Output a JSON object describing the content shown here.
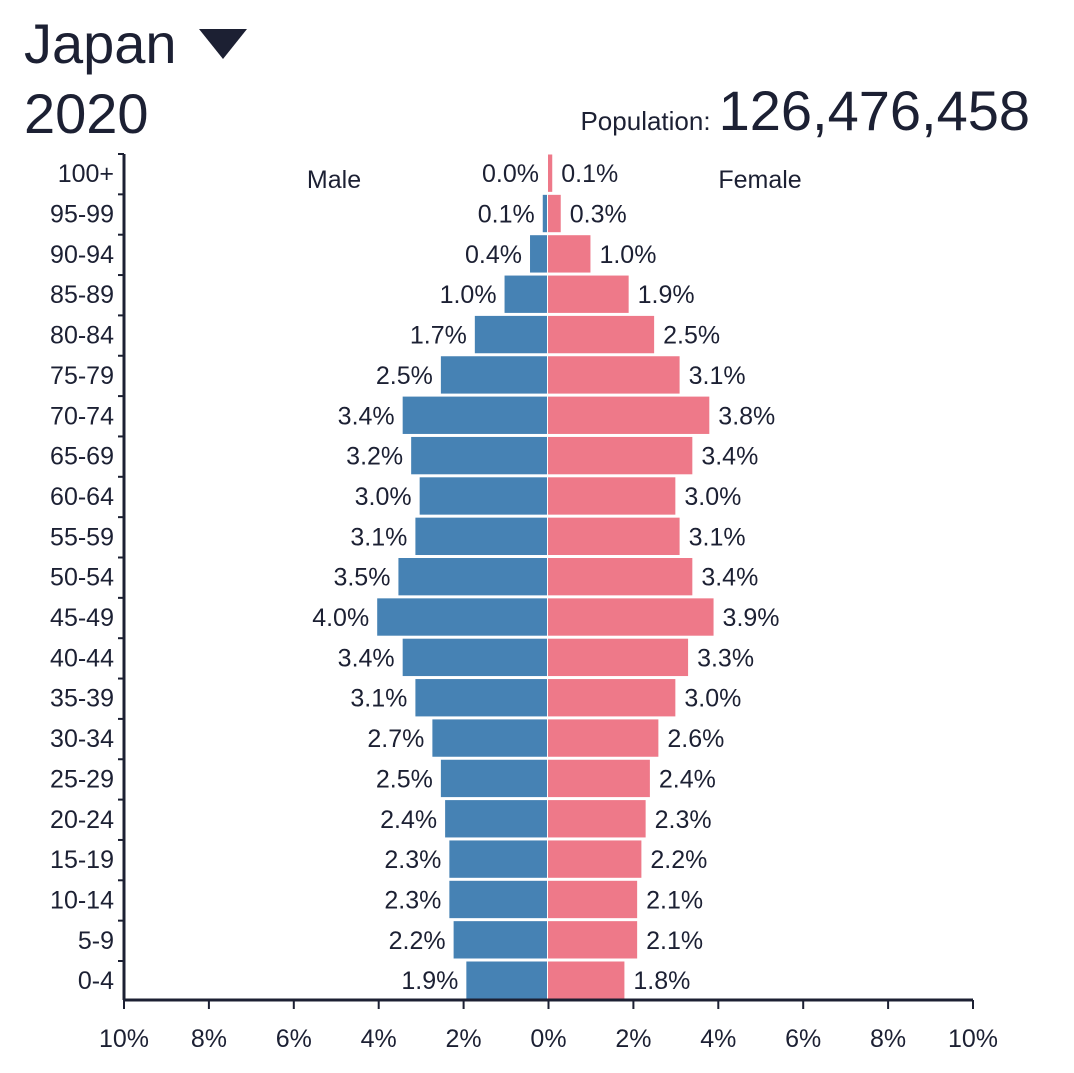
{
  "header": {
    "country": "Japan",
    "year": "2020",
    "population_label": "Population:",
    "population_value": "126,476,458"
  },
  "colors": {
    "male": "#4682b4",
    "female": "#ee7989",
    "text": "#1c2033"
  },
  "chart_data": {
    "type": "bar",
    "subtype": "population-pyramid",
    "categories": [
      "100+",
      "95-99",
      "90-94",
      "85-89",
      "80-84",
      "75-79",
      "70-74",
      "65-69",
      "60-64",
      "55-59",
      "50-54",
      "45-49",
      "40-44",
      "35-39",
      "30-34",
      "25-29",
      "20-24",
      "15-19",
      "10-14",
      "5-9",
      "0-4"
    ],
    "series": [
      {
        "name": "Male",
        "values": [
          0.0,
          0.1,
          0.4,
          1.0,
          1.7,
          2.5,
          3.4,
          3.2,
          3.0,
          3.1,
          3.5,
          4.0,
          3.4,
          3.1,
          2.7,
          2.5,
          2.4,
          2.3,
          2.3,
          2.2,
          1.9
        ],
        "labels": [
          "0.0%",
          "0.1%",
          "0.4%",
          "1.0%",
          "1.7%",
          "2.5%",
          "3.4%",
          "3.2%",
          "3.0%",
          "3.1%",
          "3.5%",
          "4.0%",
          "3.4%",
          "3.1%",
          "2.7%",
          "2.5%",
          "2.4%",
          "2.3%",
          "2.3%",
          "2.2%",
          "1.9%"
        ]
      },
      {
        "name": "Female",
        "values": [
          0.1,
          0.3,
          1.0,
          1.9,
          2.5,
          3.1,
          3.8,
          3.4,
          3.0,
          3.1,
          3.4,
          3.9,
          3.3,
          3.0,
          2.6,
          2.4,
          2.3,
          2.2,
          2.1,
          2.1,
          1.8
        ],
        "labels": [
          "0.1%",
          "0.3%",
          "1.0%",
          "1.9%",
          "2.5%",
          "3.1%",
          "3.8%",
          "3.4%",
          "3.0%",
          "3.1%",
          "3.4%",
          "3.9%",
          "3.3%",
          "3.0%",
          "2.6%",
          "2.4%",
          "2.3%",
          "2.2%",
          "2.1%",
          "2.1%",
          "1.8%"
        ]
      }
    ],
    "xlim": [
      -10,
      10
    ],
    "xticks": [
      "10%",
      "8%",
      "6%",
      "4%",
      "2%",
      "0%",
      "2%",
      "4%",
      "6%",
      "8%",
      "10%"
    ],
    "legend": {
      "left": "Male",
      "right": "Female"
    }
  }
}
